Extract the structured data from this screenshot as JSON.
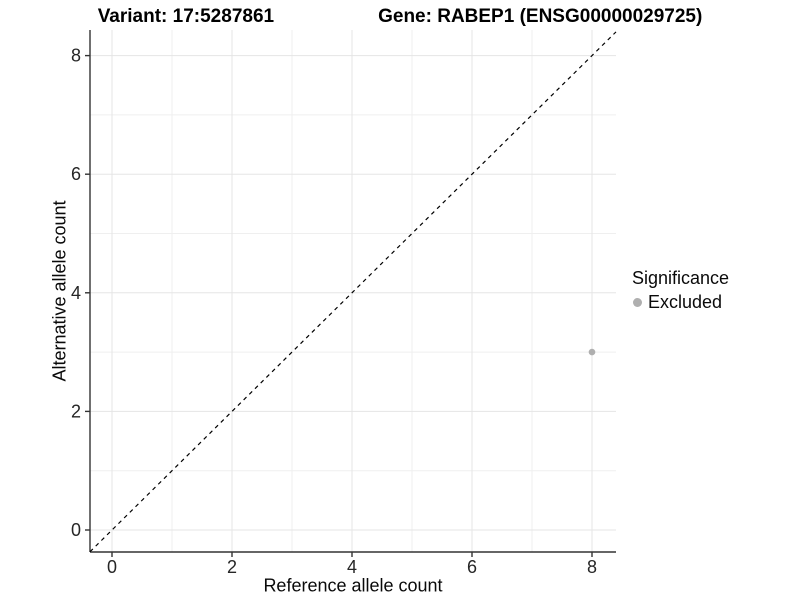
{
  "figure": {
    "title_left": "Variant: 17:5287861",
    "title_right": "Gene: RABEP1 (ENSG00000029725)"
  },
  "axes": {
    "x": {
      "label": "Reference allele count"
    },
    "y": {
      "label": "Alternative allele count"
    }
  },
  "legend": {
    "title": "Significance",
    "items": [
      {
        "label": "Excluded",
        "marker": "circle-icon",
        "color": "#afafaf"
      }
    ]
  },
  "chart_data": {
    "type": "scatter",
    "title": "Variant: 17:5287861   Gene: RABEP1 (ENSG00000029725)",
    "xlabel": "Reference allele count",
    "ylabel": "Alternative allele count",
    "xlim": [
      -0.37,
      8.4
    ],
    "ylim": [
      -0.37,
      8.43
    ],
    "x_major_ticks": [
      0,
      2,
      4,
      6,
      8
    ],
    "y_major_ticks": [
      0,
      2,
      4,
      6,
      8
    ],
    "x_minor_ticks": [
      1,
      3,
      5,
      7
    ],
    "y_minor_ticks": [
      1,
      3,
      5,
      7
    ],
    "grid": true,
    "legend_position": "right",
    "series": [
      {
        "name": "Excluded",
        "color": "#afafaf",
        "points": [
          {
            "x": 8,
            "y": 3
          }
        ]
      }
    ],
    "reference_line": {
      "slope": 1,
      "intercept": 0,
      "style": "dashed",
      "color": "#000000"
    }
  },
  "colors": {
    "grid_major": "#e5e5e5",
    "grid_minor": "#efefef",
    "axis_line": "#333333",
    "tick_text": "#262626",
    "point": "#afafaf"
  }
}
